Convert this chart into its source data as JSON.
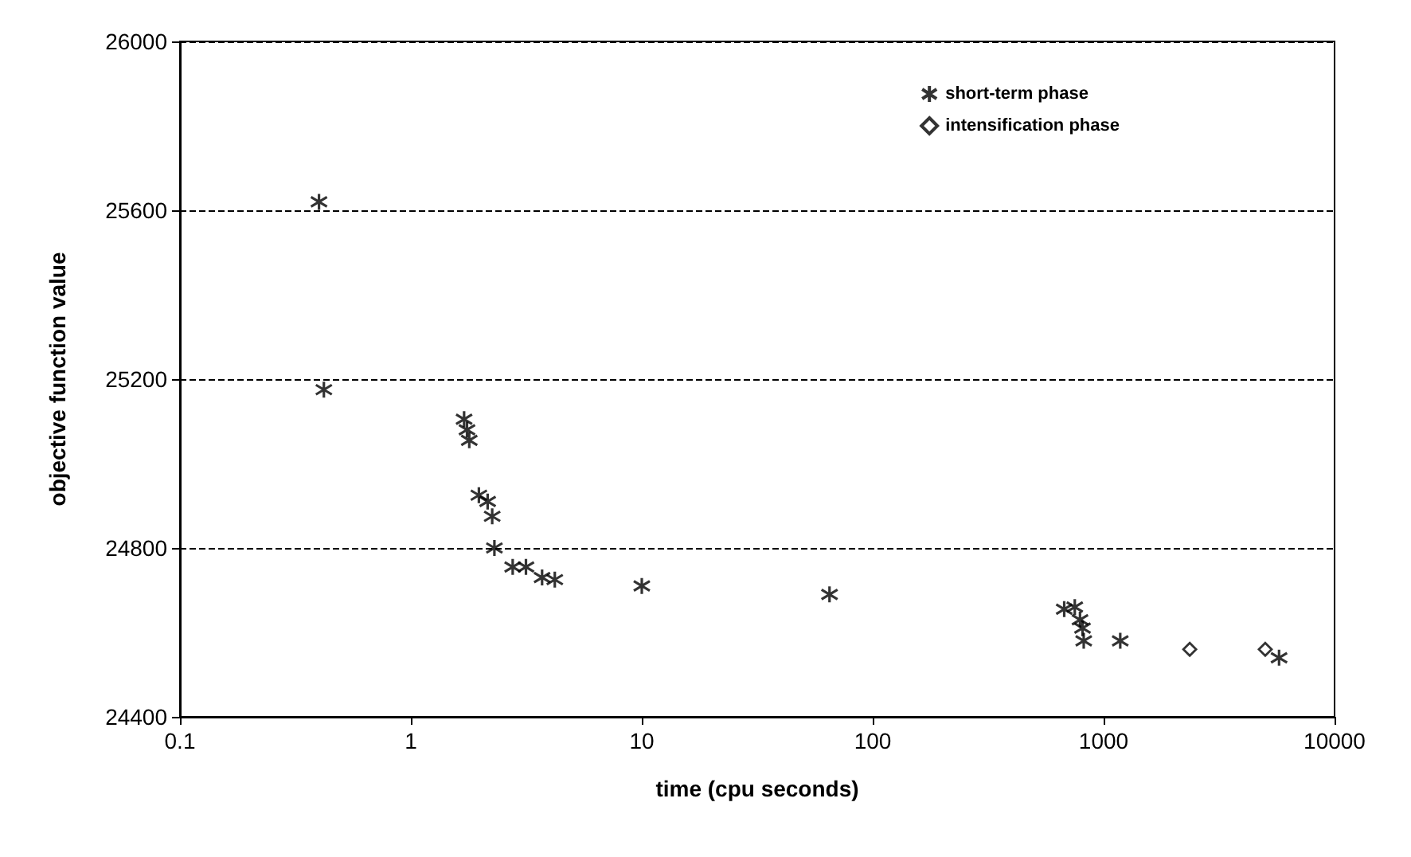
{
  "chart_data": {
    "type": "scatter",
    "xlabel": "time (cpu seconds)",
    "ylabel": "objective function value",
    "log": "x",
    "xlim": [
      0.1,
      10000
    ],
    "xticks": [
      0.1,
      1,
      10,
      100,
      1000,
      10000
    ],
    "ylim": [
      24400,
      26000
    ],
    "yticks": [
      24400,
      24800,
      25200,
      25600,
      26000
    ],
    "grid": "y",
    "legend": "top right",
    "series": [
      {
        "name": "short-term phase",
        "color": "#000000",
        "marker": "cross",
        "x": [
          0.4,
          0.42,
          1.7,
          1.75,
          1.79,
          1.97,
          2.15,
          2.25,
          2.3,
          2.76,
          3.15,
          3.7,
          4.2,
          10,
          65,
          675,
          750,
          790,
          810,
          820,
          1180,
          5750
        ],
        "values": [
          25620,
          25175,
          25105,
          25080,
          25055,
          24925,
          24910,
          24875,
          24800,
          24755,
          24755,
          24730,
          24725,
          24710,
          24690,
          24655,
          24660,
          24630,
          24610,
          24580,
          24580,
          24540
        ]
      },
      {
        "name": "intensification phase",
        "color": "#000000",
        "marker": "diamond",
        "x": [
          2360,
          5010
        ],
        "values": [
          24560,
          24560
        ]
      }
    ]
  }
}
